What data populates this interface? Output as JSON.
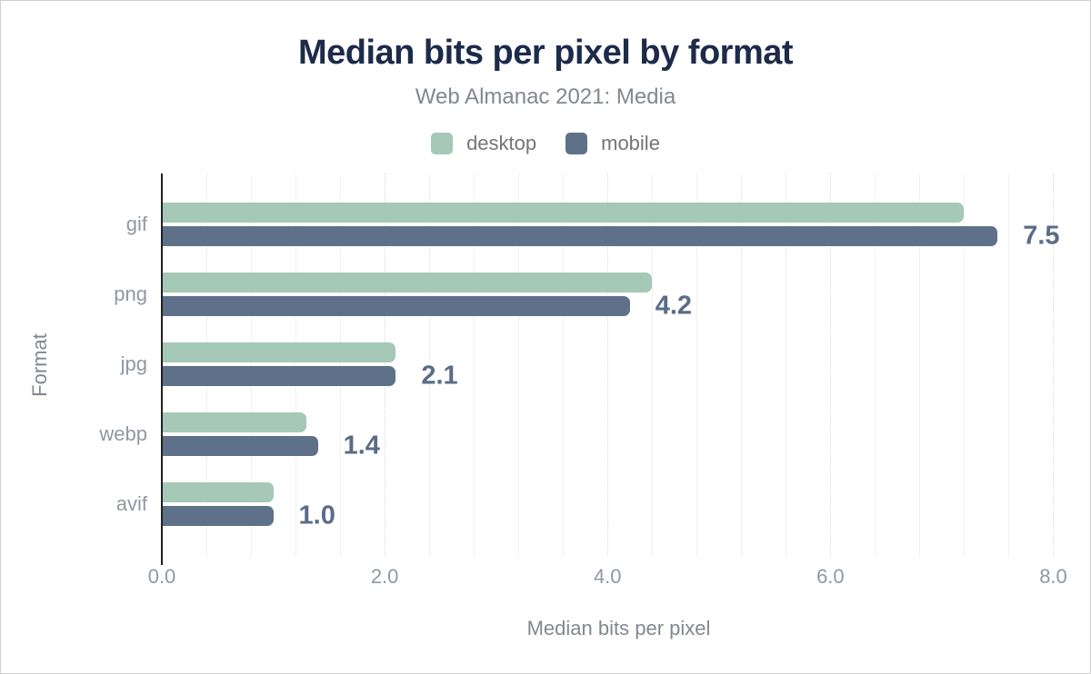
{
  "chart_data": {
    "type": "bar",
    "orientation": "horizontal",
    "title": "Median bits per pixel by format",
    "subtitle": "Web Almanac 2021: Media",
    "xlabel": "Median bits per pixel",
    "ylabel": "Format",
    "categories": [
      "gif",
      "png",
      "jpg",
      "webp",
      "avif"
    ],
    "series": [
      {
        "name": "desktop",
        "color": "#a6c8b6",
        "values": [
          7.2,
          4.4,
          2.1,
          1.3,
          1.0
        ]
      },
      {
        "name": "mobile",
        "color": "#5f7189",
        "values": [
          7.5,
          4.2,
          2.1,
          1.4,
          1.0
        ]
      }
    ],
    "data_labels": [
      "7.5",
      "4.2",
      "2.1",
      "1.4",
      "1.0"
    ],
    "data_label_series": "mobile",
    "xlim": [
      0,
      8.2
    ],
    "xticks": [
      {
        "value": 0,
        "label": "0.0"
      },
      {
        "value": 2,
        "label": "2.0"
      },
      {
        "value": 4,
        "label": "4.0"
      },
      {
        "value": 6,
        "label": "6.0"
      },
      {
        "value": 8,
        "label": "8.0"
      }
    ],
    "grid_step": 0.4,
    "grid": "vertical, minor solid light, major dotted",
    "legend_position": "top"
  },
  "theme": {
    "background": "#ffffff",
    "title_color": "#1c2b4a",
    "subtitle_color": "#828890",
    "legend_text_color": "#757575",
    "axis_text_color": "#9098a1",
    "axis_title_color": "#828890",
    "data_label_color": "#5a6c87",
    "axis_line_color": "#212121",
    "desktop_color": "#a6c8b6",
    "mobile_color": "#5f7189"
  }
}
